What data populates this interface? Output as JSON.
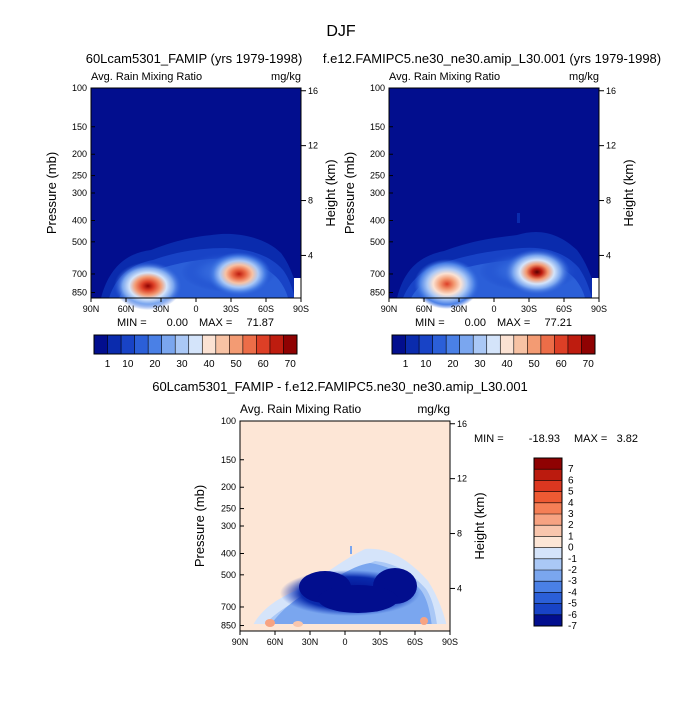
{
  "page_title": "DJF",
  "chart_data": [
    {
      "type": "heatmap",
      "id": "panel-a",
      "title": "60Lcam5301_FAMIP (yrs 1979-1998)",
      "left_label": "Avg. Rain Mixing Ratio",
      "units": "mg/kg",
      "ylabel": "Pressure (mb)",
      "y2label": "Height (km)",
      "x_ticks": [
        "90N",
        "60N",
        "30N",
        "0",
        "30S",
        "60S",
        "90S"
      ],
      "y_ticks": [
        "100",
        "150",
        "200",
        "250",
        "300",
        "400",
        "500",
        "700",
        "850"
      ],
      "y2_ticks": [
        "16",
        "12",
        "8",
        "4"
      ],
      "min_label": "MIN =",
      "min_value": "0.00",
      "max_label": "MAX =",
      "max_value": "71.87",
      "colorbar_labels": [
        "1",
        "10",
        "20",
        "30",
        "40",
        "50",
        "60",
        "70"
      ],
      "peaks": [
        {
          "lat": -38,
          "pressure": 710,
          "value": 71.87
        },
        {
          "lat": 48,
          "pressure": 800,
          "value": 60
        }
      ]
    },
    {
      "type": "heatmap",
      "id": "panel-b",
      "title": "f.e12.FAMIPC5.ne30_ne30.amip_L30.001 (yrs 1979-1998)",
      "left_label": "Avg. Rain Mixing Ratio",
      "units": "mg/kg",
      "ylabel": "Pressure (mb)",
      "y2label": "Height (km)",
      "x_ticks": [
        "90N",
        "60N",
        "30N",
        "0",
        "30S",
        "60S",
        "90S"
      ],
      "y_ticks": [
        "100",
        "150",
        "200",
        "250",
        "300",
        "400",
        "500",
        "700",
        "850"
      ],
      "y2_ticks": [
        "16",
        "12",
        "8",
        "4"
      ],
      "min_label": "MIN =",
      "min_value": "0.00",
      "max_label": "MAX =",
      "max_value": "77.21",
      "colorbar_labels": [
        "1",
        "10",
        "20",
        "30",
        "40",
        "50",
        "60",
        "70"
      ],
      "peaks": [
        {
          "lat": -40,
          "pressure": 700,
          "value": 77.21
        },
        {
          "lat": 45,
          "pressure": 790,
          "value": 62
        }
      ]
    },
    {
      "type": "heatmap",
      "id": "panel-diff",
      "title": "60Lcam5301_FAMIP - f.e12.FAMIPC5.ne30_ne30.amip_L30.001",
      "left_label": "Avg. Rain Mixing Ratio",
      "units": "mg/kg",
      "ylabel": "Pressure (mb)",
      "y2label": "Height (km)",
      "x_ticks": [
        "90N",
        "60N",
        "30N",
        "0",
        "30S",
        "60S",
        "90S"
      ],
      "y_ticks": [
        "100",
        "150",
        "200",
        "250",
        "300",
        "400",
        "500",
        "700",
        "850"
      ],
      "y2_ticks": [
        "16",
        "12",
        "8",
        "4"
      ],
      "min_label": "MIN =",
      "min_value": "-18.93",
      "max_label": "MAX =",
      "max_value": "3.82",
      "colorbar_labels": [
        "7",
        "6",
        "5",
        "4",
        "3",
        "2",
        "1",
        "0",
        "-1",
        "-2",
        "-3",
        "-4",
        "-5",
        "-6",
        "-7"
      ]
    }
  ],
  "colors": {
    "seq": [
      "#020e8e",
      "#0a2bad",
      "#1843c6",
      "#2b5fd8",
      "#4a80e6",
      "#7aa6ef",
      "#aac8f6",
      "#d4e4fa",
      "#fbe2d3",
      "#f7c2a4",
      "#f39b73",
      "#ec6d48",
      "#dd3f26",
      "#be1c0f",
      "#8f0202"
    ],
    "diff": [
      "#8f0202",
      "#bb1b0e",
      "#dc3720",
      "#ee5a33",
      "#f57f56",
      "#f7a382",
      "#f9c6ad",
      "#fde6d6",
      "#d5e4fa",
      "#aac8f6",
      "#7aa6ef",
      "#4a80e6",
      "#2b5fd8",
      "#1843c6",
      "#020e8e"
    ]
  }
}
